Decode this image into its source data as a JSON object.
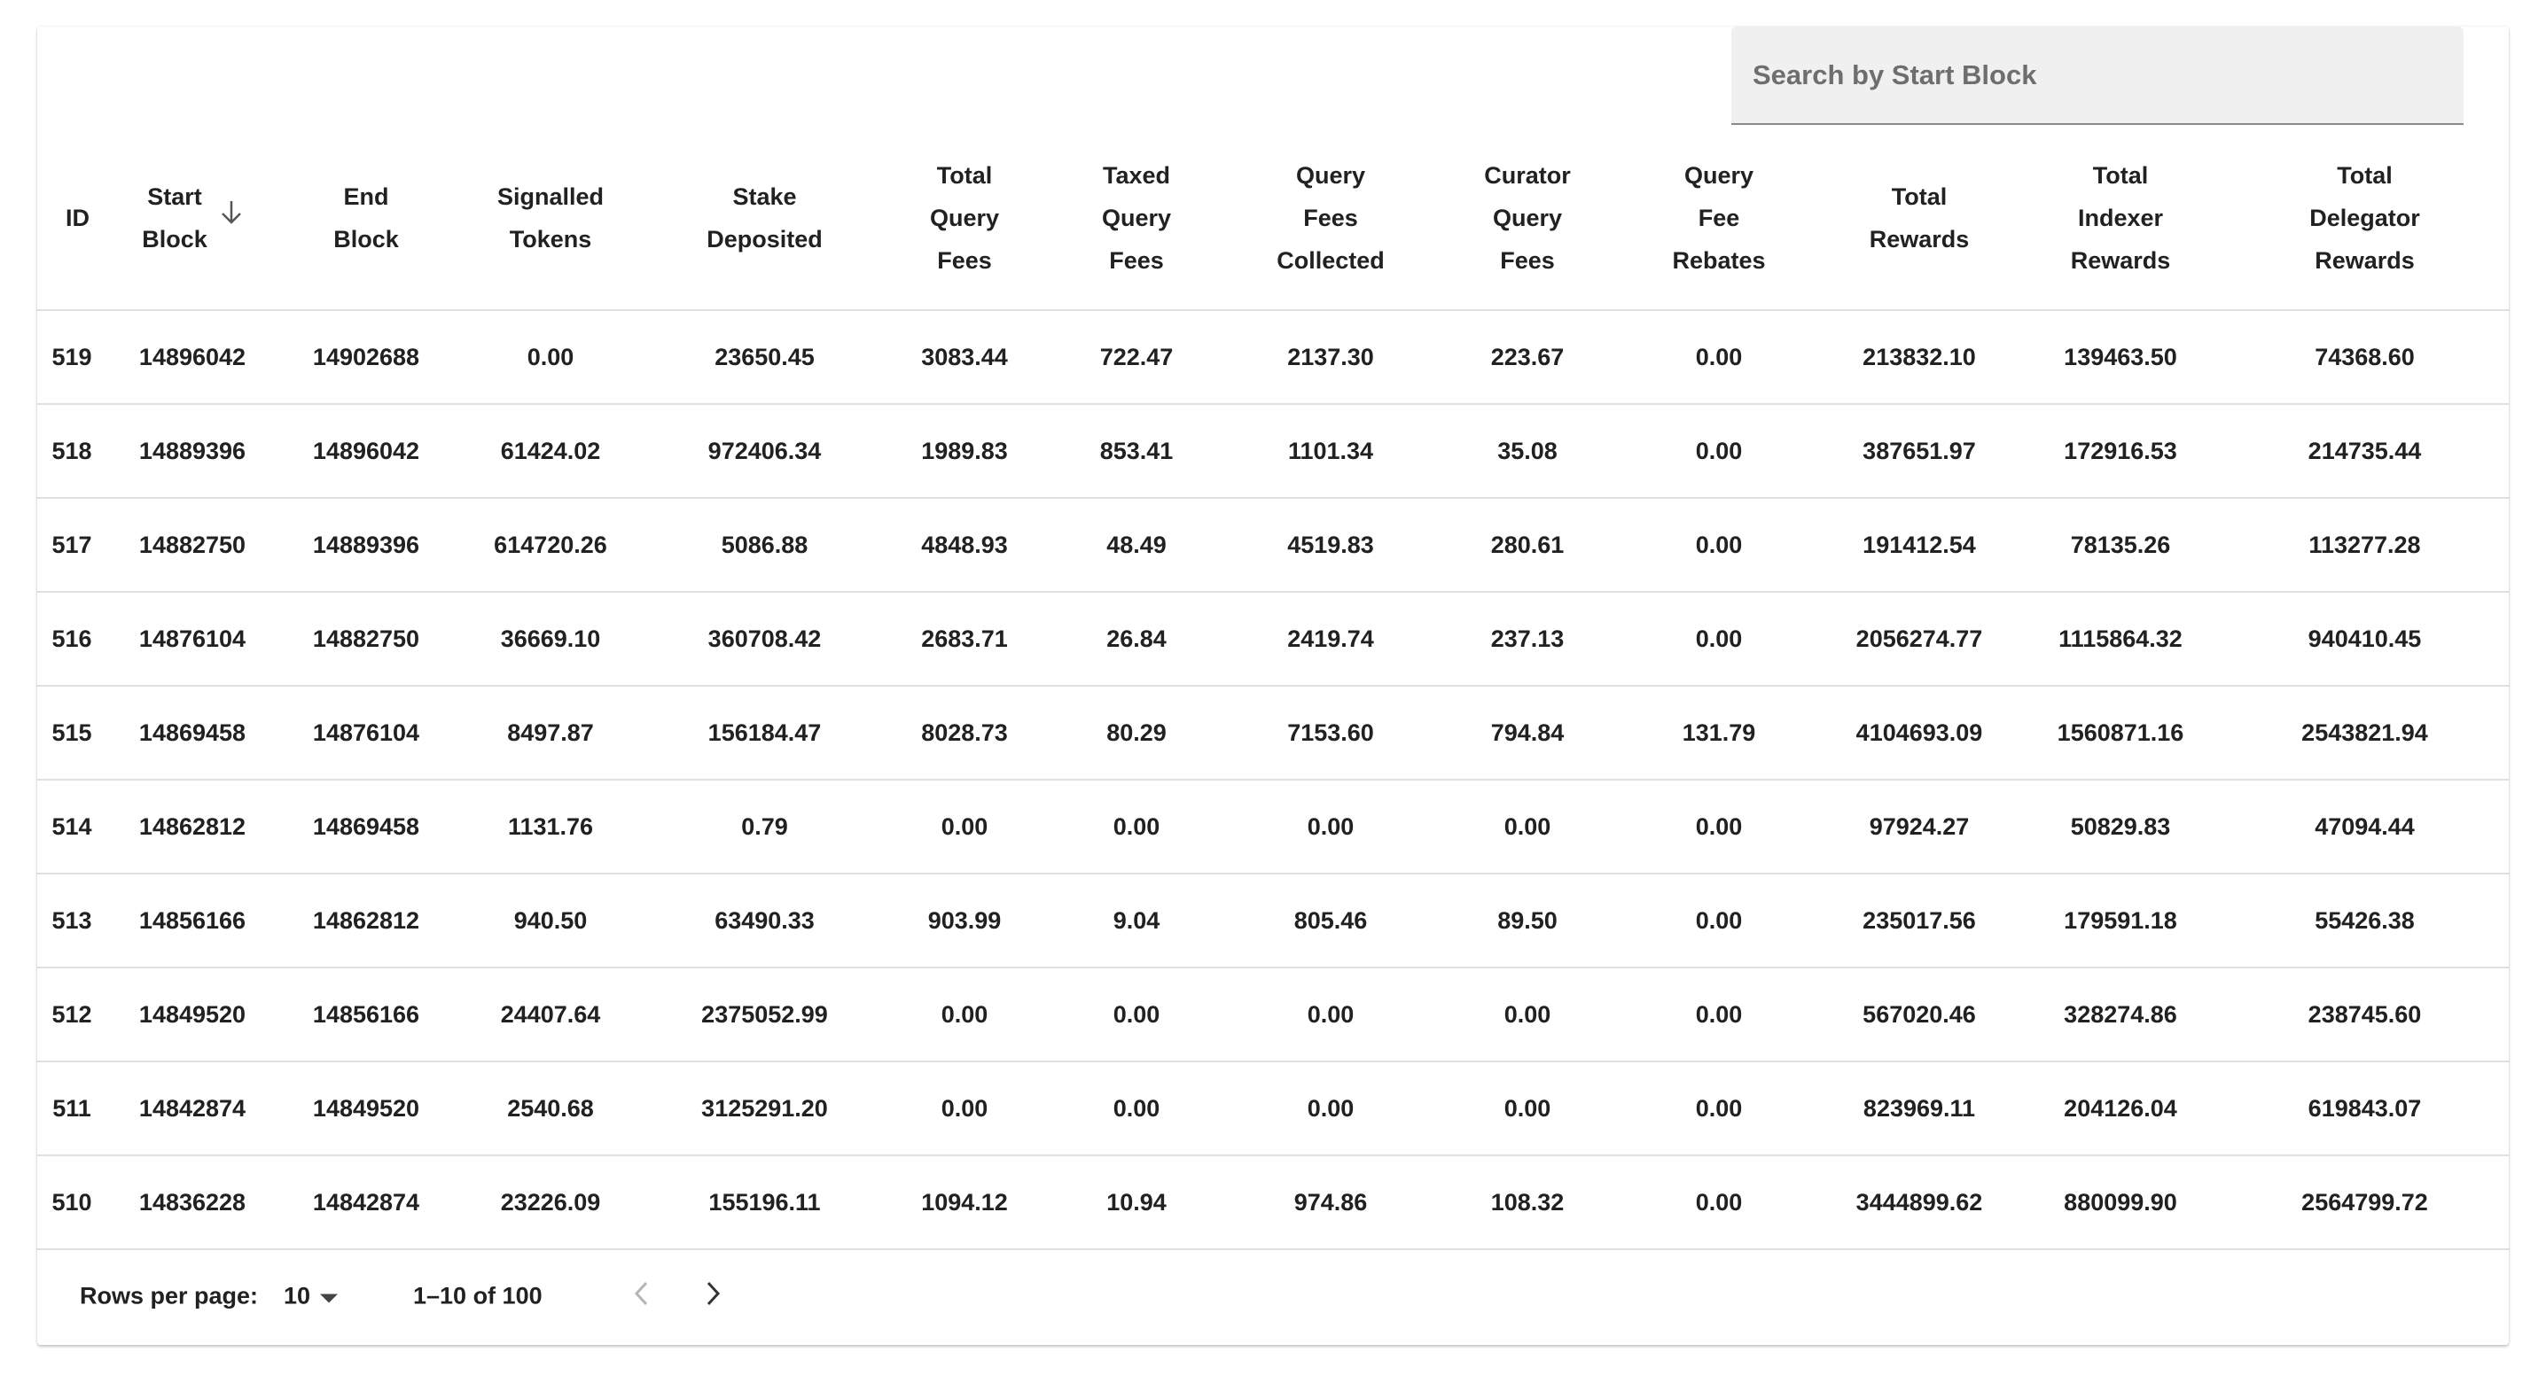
{
  "search": {
    "placeholder": "Search by Start Block",
    "value": ""
  },
  "table": {
    "columns": [
      [
        "ID"
      ],
      [
        "Start",
        "Block"
      ],
      [
        "End",
        "Block"
      ],
      [
        "Signalled",
        "Tokens"
      ],
      [
        "Stake",
        "Deposited"
      ],
      [
        "Total",
        "Query",
        "Fees"
      ],
      [
        "Taxed",
        "Query",
        "Fees"
      ],
      [
        "Query",
        "Fees",
        "Collected"
      ],
      [
        "Curator",
        "Query",
        "Fees"
      ],
      [
        "Query",
        "Fee",
        "Rebates"
      ],
      [
        "Total",
        "Rewards"
      ],
      [
        "Total",
        "Indexer",
        "Rewards"
      ],
      [
        "Total",
        "Delegator",
        "Rewards"
      ]
    ],
    "sort_column": "Start Block",
    "sort_direction": "descending",
    "rows": [
      [
        "519",
        "14896042",
        "14902688",
        "0.00",
        "23650.45",
        "3083.44",
        "722.47",
        "2137.30",
        "223.67",
        "0.00",
        "213832.10",
        "139463.50",
        "74368.60"
      ],
      [
        "518",
        "14889396",
        "14896042",
        "61424.02",
        "972406.34",
        "1989.83",
        "853.41",
        "1101.34",
        "35.08",
        "0.00",
        "387651.97",
        "172916.53",
        "214735.44"
      ],
      [
        "517",
        "14882750",
        "14889396",
        "614720.26",
        "5086.88",
        "4848.93",
        "48.49",
        "4519.83",
        "280.61",
        "0.00",
        "191412.54",
        "78135.26",
        "113277.28"
      ],
      [
        "516",
        "14876104",
        "14882750",
        "36669.10",
        "360708.42",
        "2683.71",
        "26.84",
        "2419.74",
        "237.13",
        "0.00",
        "2056274.77",
        "1115864.32",
        "940410.45"
      ],
      [
        "515",
        "14869458",
        "14876104",
        "8497.87",
        "156184.47",
        "8028.73",
        "80.29",
        "7153.60",
        "794.84",
        "131.79",
        "4104693.09",
        "1560871.16",
        "2543821.94"
      ],
      [
        "514",
        "14862812",
        "14869458",
        "1131.76",
        "0.79",
        "0.00",
        "0.00",
        "0.00",
        "0.00",
        "0.00",
        "97924.27",
        "50829.83",
        "47094.44"
      ],
      [
        "513",
        "14856166",
        "14862812",
        "940.50",
        "63490.33",
        "903.99",
        "9.04",
        "805.46",
        "89.50",
        "0.00",
        "235017.56",
        "179591.18",
        "55426.38"
      ],
      [
        "512",
        "14849520",
        "14856166",
        "24407.64",
        "2375052.99",
        "0.00",
        "0.00",
        "0.00",
        "0.00",
        "0.00",
        "567020.46",
        "328274.86",
        "238745.60"
      ],
      [
        "511",
        "14842874",
        "14849520",
        "2540.68",
        "3125291.20",
        "0.00",
        "0.00",
        "0.00",
        "0.00",
        "0.00",
        "823969.11",
        "204126.04",
        "619843.07"
      ],
      [
        "510",
        "14836228",
        "14842874",
        "23226.09",
        "155196.11",
        "1094.12",
        "10.94",
        "974.86",
        "108.32",
        "0.00",
        "3444899.62",
        "880099.90",
        "2564799.72"
      ]
    ]
  },
  "pagination": {
    "rows_per_page_label": "Rows per page:",
    "rows_per_page": "10",
    "range": "1–10 of 100"
  },
  "icons": {
    "sort": "arrow-down-icon",
    "dropdown": "caret-down-icon",
    "prev": "chevron-left-icon",
    "next": "chevron-right-icon"
  },
  "colors": {
    "divider": "#e0e0e0",
    "search_bg": "#f0f0f0",
    "disabled_icon": "#b5b5b5"
  }
}
